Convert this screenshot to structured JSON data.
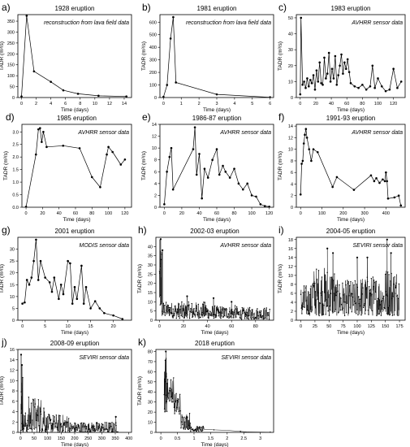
{
  "figure": {
    "ylabel": "TADR (m³/s)",
    "xlabel": "Time (days)"
  },
  "chart_data": [
    {
      "panel": "a)",
      "type": "line",
      "title": "1928 eruption",
      "annotation": "reconstruction from lava field data",
      "xlabel": "Time (days)",
      "ylabel": "TADR (m³/s)",
      "xlim": [
        -0.5,
        15
      ],
      "ylim": [
        0,
        380
      ],
      "xticks": [
        0,
        2,
        4,
        6,
        8,
        10,
        12,
        14
      ],
      "yticks": [
        0,
        50,
        100,
        150,
        200,
        250,
        300,
        350
      ],
      "x": [
        0,
        0.7,
        1.7,
        4,
        5.7,
        7.7,
        10.5,
        14.3
      ],
      "y": [
        5,
        375,
        120,
        72,
        33,
        17,
        8,
        5
      ]
    },
    {
      "panel": "b)",
      "type": "line",
      "title": "1981 eruption",
      "annotation": "reconstruction from lava field data",
      "xlabel": "Time (days)",
      "ylabel": "TADR (m³/s)",
      "xlim": [
        -0.2,
        6.2
      ],
      "ylim": [
        0,
        660
      ],
      "xticks": [
        0,
        1,
        2,
        3,
        4,
        5,
        6
      ],
      "yticks": [
        0,
        100,
        200,
        300,
        400,
        500,
        600
      ],
      "x": [
        0,
        0.2,
        0.4,
        0.55,
        0.7,
        3,
        6
      ],
      "y": [
        5,
        100,
        470,
        640,
        120,
        25,
        2
      ]
    },
    {
      "panel": "c)",
      "type": "line",
      "title": "1983 eruption",
      "annotation": "AVHRR sensor data",
      "xlabel": "Time (days)",
      "ylabel": "TADR (m³/s)",
      "xlim": [
        -5,
        135
      ],
      "ylim": [
        0,
        52
      ],
      "xticks": [
        0,
        20,
        40,
        60,
        80,
        100,
        120
      ],
      "yticks": [
        0,
        10,
        20,
        30,
        40,
        50
      ],
      "x": [
        0,
        1,
        3,
        5,
        7,
        9,
        11,
        13,
        15,
        17,
        19,
        21,
        23,
        25,
        27,
        29,
        31,
        33,
        35,
        37,
        39,
        41,
        43,
        45,
        47,
        49,
        51,
        53,
        55,
        57,
        59,
        61,
        63,
        65,
        70,
        75,
        80,
        85,
        90,
        93,
        96,
        100,
        105,
        110,
        115,
        120,
        125,
        130
      ],
      "y": [
        2,
        50,
        8,
        10,
        6,
        12,
        7,
        11,
        9,
        14,
        5,
        17,
        10,
        22,
        9,
        8,
        25,
        12,
        15,
        28,
        10,
        18,
        12,
        26,
        8,
        14,
        20,
        27,
        15,
        22,
        18,
        24,
        16,
        9,
        7,
        6,
        8,
        5,
        7,
        20,
        6,
        12,
        7,
        4,
        5,
        18,
        6,
        10
      ]
    },
    {
      "panel": "d)",
      "type": "line",
      "title": "1985 eruption",
      "annotation": "AVHRR sensor data",
      "xlabel": "Time (days)",
      "ylabel": "TADR (m³/s)",
      "xlim": [
        -5,
        128
      ],
      "ylim": [
        0,
        3.3
      ],
      "xticks": [
        0,
        20,
        40,
        60,
        80,
        100,
        120
      ],
      "yticks": [
        0,
        0.5,
        1.0,
        1.5,
        2.0,
        2.5,
        3.0
      ],
      "ytick_labels": [
        "0.0",
        "0.5",
        "1.0",
        "1.5",
        "2.0",
        "2.5",
        "3.0"
      ],
      "x": [
        0,
        12,
        15,
        17,
        19,
        21,
        25,
        45,
        65,
        80,
        90,
        98,
        100,
        105,
        115,
        120
      ],
      "y": [
        0.02,
        2.1,
        3.1,
        3.15,
        2.6,
        3.0,
        2.4,
        2.45,
        2.35,
        1.2,
        0.8,
        2.1,
        2.4,
        2.2,
        1.7,
        1.9
      ]
    },
    {
      "panel": "e)",
      "type": "line",
      "title": "1986-87 eruption",
      "annotation": "AVHRR sensor data",
      "xlabel": "Time (days)",
      "ylabel": "TADR (m³/s)",
      "xlim": [
        -5,
        125
      ],
      "ylim": [
        0,
        14
      ],
      "xticks": [
        0,
        20,
        40,
        60,
        80,
        100,
        120
      ],
      "yticks": [
        0,
        2,
        4,
        6,
        8,
        10,
        12,
        14
      ],
      "x": [
        0,
        3,
        6,
        8,
        10,
        33,
        35,
        37,
        40,
        43,
        46,
        50,
        55,
        60,
        63,
        67,
        70,
        75,
        80,
        85,
        90,
        95,
        100,
        105,
        110,
        115,
        120
      ],
      "y": [
        0.5,
        6,
        8.5,
        10,
        3,
        9.8,
        13.5,
        5.5,
        9,
        1.5,
        6.5,
        5,
        8,
        9.8,
        5.5,
        7,
        6,
        5,
        6.5,
        4,
        3,
        4,
        2,
        1.8,
        0.5,
        0.2,
        0.1
      ]
    },
    {
      "panel": "f)",
      "type": "line",
      "title": "1991-93 eruption",
      "annotation": "AVHRR sensor data",
      "xlabel": "Time (days)",
      "ylabel": "TADR (m³/s)",
      "xlim": [
        -20,
        490
      ],
      "ylim": [
        0,
        14.3
      ],
      "xticks": [
        0,
        100,
        200,
        300,
        400
      ],
      "yticks": [
        0,
        2,
        4,
        6,
        8,
        10,
        12,
        14
      ],
      "x": [
        0,
        5,
        10,
        15,
        20,
        25,
        30,
        40,
        50,
        60,
        80,
        150,
        170,
        250,
        330,
        345,
        355,
        370,
        385,
        395,
        400,
        405,
        410,
        440,
        460,
        470
      ],
      "y": [
        2.2,
        7.5,
        8,
        11,
        12.5,
        13.5,
        12,
        10,
        8,
        10,
        9.5,
        3.5,
        5.2,
        3,
        5.5,
        4.5,
        5,
        4.2,
        4.8,
        4.5,
        6,
        4.5,
        1.5,
        1.7,
        2,
        0.3
      ]
    },
    {
      "panel": "g)",
      "type": "line",
      "title": "2001 eruption",
      "annotation": "MODIS sensor data",
      "xlabel": "Time (days)",
      "ylabel": "TADR (m³/s)",
      "xlim": [
        -1,
        24
      ],
      "ylim": [
        0,
        35
      ],
      "xticks": [
        0,
        5,
        10,
        15,
        20
      ],
      "yticks": [
        0,
        5,
        10,
        15,
        20,
        25,
        30
      ],
      "x": [
        0,
        0.5,
        1,
        1.5,
        2,
        2.5,
        3,
        3.5,
        4,
        5,
        6,
        6.5,
        7,
        8,
        8.5,
        9,
        10,
        10.5,
        11,
        11.5,
        12,
        13,
        13.5,
        14,
        15,
        16,
        17,
        18,
        20,
        22
      ],
      "y": [
        7,
        7.5,
        17,
        15,
        18,
        25,
        34,
        17,
        25,
        18,
        16,
        12,
        18,
        9,
        15,
        11,
        25,
        24,
        7,
        14,
        9,
        23,
        7,
        14,
        5,
        8,
        5,
        3,
        2,
        0.5
      ]
    },
    {
      "panel": "h)",
      "type": "line",
      "title": "2002-03 eruption",
      "annotation": "AVHRR sensor data",
      "xlabel": "Time (days)",
      "ylabel": "TADR (m³/s)",
      "xlim": [
        -3,
        95
      ],
      "ylim": [
        0,
        45
      ],
      "xticks": [
        0,
        20,
        40,
        60,
        80
      ],
      "yticks": [
        0,
        5,
        10,
        15,
        20,
        25,
        30,
        35,
        40
      ],
      "series_kind": "dense",
      "envelope": [
        {
          "x0": 0,
          "x1": 2,
          "ylo": 5,
          "yhi": 44
        },
        {
          "x0": 2,
          "x1": 10,
          "ylo": 2,
          "yhi": 10
        },
        {
          "x0": 10,
          "x1": 40,
          "ylo": 1,
          "yhi": 10
        },
        {
          "x0": 40,
          "x1": 65,
          "ylo": 1,
          "yhi": 8
        },
        {
          "x0": 65,
          "x1": 92,
          "ylo": 0.5,
          "yhi": 7
        }
      ],
      "peaks": [
        {
          "x": 1,
          "y": 44
        },
        {
          "x": 2.5,
          "y": 38
        },
        {
          "x": 23,
          "y": 13
        },
        {
          "x": 45,
          "y": 12
        },
        {
          "x": 60,
          "y": 10
        }
      ]
    },
    {
      "panel": "i)",
      "type": "line",
      "title": "2004-05 eruption",
      "annotation": "SEVIRI sensor data",
      "xlabel": "Time (days)",
      "ylabel": "TADR (m³/s)",
      "xlim": [
        -8,
        185
      ],
      "ylim": [
        0,
        18.5
      ],
      "xticks": [
        0,
        25,
        50,
        75,
        100,
        125,
        150,
        175
      ],
      "yticks": [
        0,
        2,
        4,
        6,
        8,
        10,
        12,
        14,
        16,
        18
      ],
      "series_kind": "dense",
      "envelope": [
        {
          "x0": 0,
          "x1": 20,
          "ylo": 1,
          "yhi": 8
        },
        {
          "x0": 20,
          "x1": 60,
          "ylo": 1,
          "yhi": 12
        },
        {
          "x0": 60,
          "x1": 100,
          "ylo": 1,
          "yhi": 9
        },
        {
          "x0": 100,
          "x1": 150,
          "ylo": 1,
          "yhi": 10
        },
        {
          "x0": 150,
          "x1": 175,
          "ylo": 1,
          "yhi": 12
        }
      ],
      "peaks": [
        {
          "x": 47,
          "y": 16
        },
        {
          "x": 57,
          "y": 15
        },
        {
          "x": 100,
          "y": 14
        },
        {
          "x": 118,
          "y": 14
        },
        {
          "x": 153,
          "y": 18
        },
        {
          "x": 160,
          "y": 15
        }
      ]
    },
    {
      "panel": "j)",
      "type": "line",
      "title": "2008-09 eruption",
      "annotation": "SEVIRI sensor data",
      "xlabel": "Time (days)",
      "ylabel": "TADR (m³/s)",
      "xlim": [
        -10,
        410
      ],
      "ylim": [
        0,
        16
      ],
      "xticks": [
        0,
        50,
        100,
        150,
        200,
        250,
        300,
        350,
        400
      ],
      "yticks": [
        0,
        2,
        4,
        6,
        8,
        10,
        12,
        14,
        16
      ],
      "series_kind": "dense",
      "envelope": [
        {
          "x0": 0,
          "x1": 10,
          "ylo": 0,
          "yhi": 12
        },
        {
          "x0": 10,
          "x1": 30,
          "ylo": 0,
          "yhi": 4
        },
        {
          "x0": 30,
          "x1": 90,
          "ylo": 0,
          "yhi": 7
        },
        {
          "x0": 90,
          "x1": 180,
          "ylo": 0,
          "yhi": 3.5
        },
        {
          "x0": 180,
          "x1": 360,
          "ylo": 0,
          "yhi": 2
        }
      ],
      "peaks": [
        {
          "x": 2,
          "y": 15
        },
        {
          "x": 5,
          "y": 13
        },
        {
          "x": 352,
          "y": 3
        }
      ]
    },
    {
      "panel": "k)",
      "type": "line",
      "title": "2018 eruption",
      "annotation": "SEVIRI sensor data",
      "xlabel": "Time (days)",
      "ylabel": "TADR (m³/s)",
      "xlim": [
        -0.15,
        3.4
      ],
      "ylim": [
        0,
        82
      ],
      "xticks": [
        0,
        0.5,
        1.0,
        1.5,
        2.0,
        2.5,
        3.0
      ],
      "ytick_labels": [
        "0",
        "10",
        "20",
        "30",
        "40",
        "50",
        "60",
        "70",
        "80"
      ],
      "yticks": [
        0,
        10,
        20,
        30,
        40,
        50,
        60,
        70,
        80
      ],
      "series_kind": "dense",
      "envelope": [
        {
          "x0": 0.1,
          "x1": 0.2,
          "ylo": 20,
          "yhi": 78
        },
        {
          "x0": 0.2,
          "x1": 0.4,
          "ylo": 30,
          "yhi": 55
        },
        {
          "x0": 0.4,
          "x1": 0.6,
          "ylo": 18,
          "yhi": 40
        },
        {
          "x0": 0.6,
          "x1": 0.9,
          "ylo": 3,
          "yhi": 20
        },
        {
          "x0": 0.9,
          "x1": 1.3,
          "ylo": 1,
          "yhi": 6
        }
      ],
      "tail": [
        [
          1.3,
          3
        ],
        [
          1.6,
          2.5
        ],
        [
          2.0,
          2
        ],
        [
          2.4,
          1
        ],
        [
          2.6,
          0.5
        ],
        [
          3.3,
          0.2
        ]
      ],
      "peaks": [
        {
          "x": 0.15,
          "y": 80
        }
      ]
    }
  ]
}
